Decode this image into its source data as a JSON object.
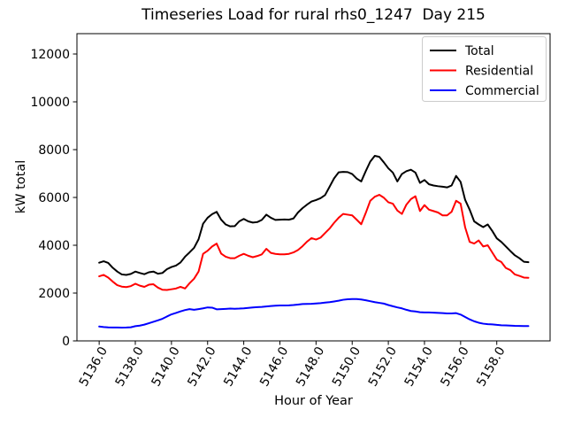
{
  "title": "Timeseries Load for rural rhs0_1247  Day 215",
  "chart_data": {
    "type": "line",
    "title": "Timeseries Load for rural rhs0_1247  Day 215",
    "xlabel": "Hour of Year",
    "ylabel": "kW total",
    "grid": false,
    "legend_position": "upper right",
    "xlim": [
      5134.77,
      5160.95
    ],
    "ylim": [
      0,
      12852
    ],
    "x_ticks": [
      5136,
      5138,
      5140,
      5142,
      5144,
      5146,
      5148,
      5150,
      5152,
      5154,
      5156,
      5158
    ],
    "x_tick_labels": [
      "5136.0",
      "5138.0",
      "5140.0",
      "5142.0",
      "5144.0",
      "5146.0",
      "5148.0",
      "5150.0",
      "5152.0",
      "5154.0",
      "5156.0",
      "5158.0"
    ],
    "y_ticks": [
      0,
      2000,
      4000,
      6000,
      8000,
      10000,
      12000
    ],
    "y_tick_labels": [
      "0",
      "2000",
      "4000",
      "6000",
      "8000",
      "10000",
      "12000"
    ],
    "x": [
      5136.0,
      5136.25,
      5136.5,
      5136.75,
      5137.0,
      5137.25,
      5137.5,
      5137.75,
      5138.0,
      5138.25,
      5138.5,
      5138.75,
      5139.0,
      5139.25,
      5139.5,
      5139.75,
      5140.0,
      5140.25,
      5140.5,
      5140.75,
      5141.0,
      5141.25,
      5141.5,
      5141.75,
      5142.0,
      5142.25,
      5142.5,
      5142.75,
      5143.0,
      5143.25,
      5143.5,
      5143.75,
      5144.0,
      5144.25,
      5144.5,
      5144.75,
      5145.0,
      5145.25,
      5145.5,
      5145.75,
      5146.0,
      5146.25,
      5146.5,
      5146.75,
      5147.0,
      5147.25,
      5147.5,
      5147.75,
      5148.0,
      5148.25,
      5148.5,
      5148.75,
      5149.0,
      5149.25,
      5149.5,
      5149.75,
      5150.0,
      5150.25,
      5150.5,
      5150.75,
      5151.0,
      5151.25,
      5151.5,
      5151.75,
      5152.0,
      5152.25,
      5152.5,
      5152.75,
      5153.0,
      5153.25,
      5153.5,
      5153.75,
      5154.0,
      5154.25,
      5154.5,
      5154.75,
      5155.0,
      5155.25,
      5155.5,
      5155.75,
      5156.0,
      5156.25,
      5156.5,
      5156.75,
      5157.0,
      5157.25,
      5157.5,
      5157.75,
      5158.0,
      5158.25,
      5158.5,
      5158.75,
      5159.0,
      5159.25,
      5159.5,
      5159.75
    ],
    "series": [
      {
        "name": "Total",
        "color": "#000000",
        "values": [
          3270,
          3330,
          3260,
          3060,
          2900,
          2780,
          2760,
          2800,
          2900,
          2840,
          2790,
          2870,
          2900,
          2810,
          2840,
          3000,
          3090,
          3150,
          3280,
          3520,
          3700,
          3890,
          4250,
          4900,
          5150,
          5300,
          5400,
          5070,
          4870,
          4790,
          4800,
          5000,
          5100,
          5000,
          4950,
          4970,
          5060,
          5280,
          5150,
          5060,
          5070,
          5080,
          5070,
          5120,
          5370,
          5550,
          5700,
          5830,
          5890,
          5970,
          6100,
          6450,
          6800,
          7050,
          7070,
          7060,
          6980,
          6790,
          6670,
          7100,
          7500,
          7740,
          7700,
          7470,
          7220,
          7040,
          6670,
          6980,
          7100,
          7160,
          7040,
          6610,
          6730,
          6550,
          6500,
          6470,
          6450,
          6420,
          6500,
          6900,
          6650,
          5900,
          5490,
          5000,
          4870,
          4760,
          4870,
          4600,
          4290,
          4140,
          3950,
          3760,
          3580,
          3460,
          3310,
          3290
        ]
      },
      {
        "name": "Residential",
        "color": "#ff0000",
        "values": [
          2700,
          2760,
          2650,
          2480,
          2330,
          2270,
          2250,
          2290,
          2390,
          2310,
          2260,
          2350,
          2370,
          2230,
          2140,
          2130,
          2160,
          2190,
          2260,
          2190,
          2410,
          2600,
          2900,
          3640,
          3770,
          3950,
          4070,
          3650,
          3520,
          3460,
          3460,
          3560,
          3640,
          3560,
          3500,
          3550,
          3620,
          3850,
          3680,
          3640,
          3620,
          3620,
          3640,
          3700,
          3800,
          3960,
          4150,
          4300,
          4240,
          4320,
          4510,
          4700,
          4940,
          5150,
          5310,
          5280,
          5250,
          5070,
          4880,
          5350,
          5860,
          6030,
          6110,
          5990,
          5800,
          5740,
          5450,
          5310,
          5700,
          5930,
          6050,
          5430,
          5680,
          5490,
          5430,
          5370,
          5250,
          5250,
          5400,
          5860,
          5740,
          4750,
          4140,
          4070,
          4200,
          3950,
          4000,
          3700,
          3400,
          3300,
          3050,
          2960,
          2780,
          2720,
          2650,
          2640
        ]
      },
      {
        "name": "Commercial",
        "color": "#0000ff",
        "values": [
          600,
          580,
          565,
          560,
          560,
          555,
          560,
          570,
          615,
          640,
          680,
          740,
          800,
          860,
          925,
          1020,
          1110,
          1170,
          1235,
          1290,
          1330,
          1300,
          1330,
          1360,
          1400,
          1390,
          1320,
          1330,
          1340,
          1350,
          1345,
          1350,
          1360,
          1380,
          1400,
          1410,
          1420,
          1440,
          1460,
          1470,
          1480,
          1480,
          1485,
          1500,
          1520,
          1540,
          1545,
          1550,
          1565,
          1580,
          1600,
          1620,
          1650,
          1680,
          1720,
          1740,
          1750,
          1750,
          1730,
          1700,
          1660,
          1620,
          1590,
          1560,
          1500,
          1450,
          1400,
          1360,
          1300,
          1250,
          1230,
          1200,
          1190,
          1190,
          1180,
          1170,
          1160,
          1150,
          1150,
          1160,
          1100,
          1000,
          900,
          820,
          760,
          720,
          700,
          690,
          670,
          655,
          650,
          640,
          630,
          625,
          620,
          620
        ]
      }
    ]
  }
}
